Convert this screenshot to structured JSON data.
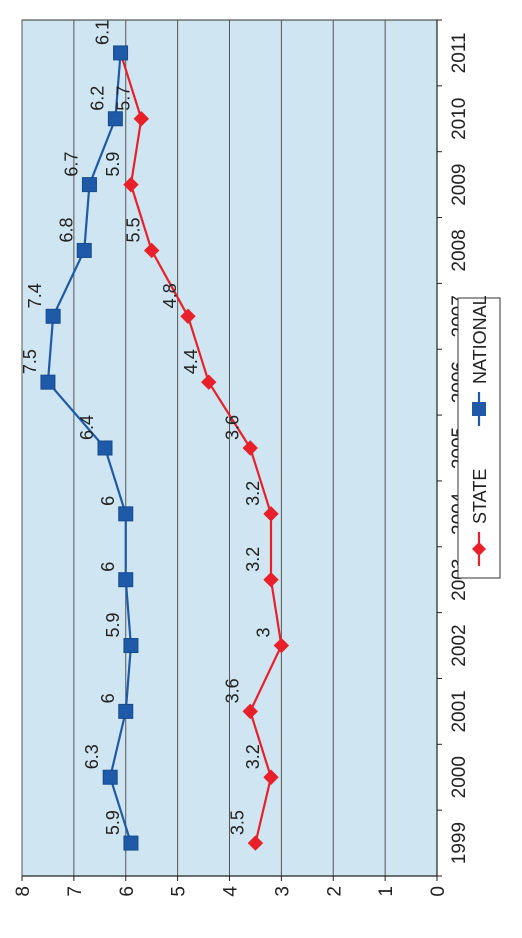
{
  "chart_data": {
    "type": "line",
    "title": "",
    "xlabel": "",
    "ylabel": "",
    "categories": [
      "1999",
      "2000",
      "2001",
      "2002",
      "2003",
      "2004",
      "2005",
      "2006",
      "2007",
      "2008",
      "2009",
      "2010",
      "2011"
    ],
    "ylim": [
      0,
      8
    ],
    "yticks": [
      "0",
      "1",
      "2",
      "3",
      "4",
      "5",
      "6",
      "7",
      "8"
    ],
    "grid": true,
    "legend_position": "bottom",
    "colors": {
      "plot_background": "#cfe6f2",
      "grid": "#555555",
      "state": "#e8202a",
      "national": "#1e5aa8"
    },
    "series": [
      {
        "name": "STATE",
        "values": [
          3.5,
          3.2,
          3.6,
          3.0,
          3.2,
          3.2,
          3.6,
          4.4,
          4.8,
          5.5,
          5.9,
          5.7,
          6.1
        ],
        "labels": [
          "3.5",
          "3.2",
          "3.6",
          "3",
          "3.2",
          "3.2",
          "3.6",
          "4.4",
          "4.8",
          "5.5",
          "5.9",
          "5.7",
          ""
        ],
        "marker": "diamond"
      },
      {
        "name": "NATIONAL",
        "values": [
          5.9,
          6.3,
          6.0,
          5.9,
          6.0,
          6.0,
          6.4,
          7.5,
          7.4,
          6.8,
          6.7,
          6.2,
          6.1
        ],
        "labels": [
          "5.9",
          "6.3",
          "6",
          "5.9",
          "6",
          "6",
          "6.4",
          "7.5",
          "7.4",
          "6.8",
          "6.7",
          "6.2",
          "6.1"
        ],
        "marker": "square"
      }
    ]
  }
}
